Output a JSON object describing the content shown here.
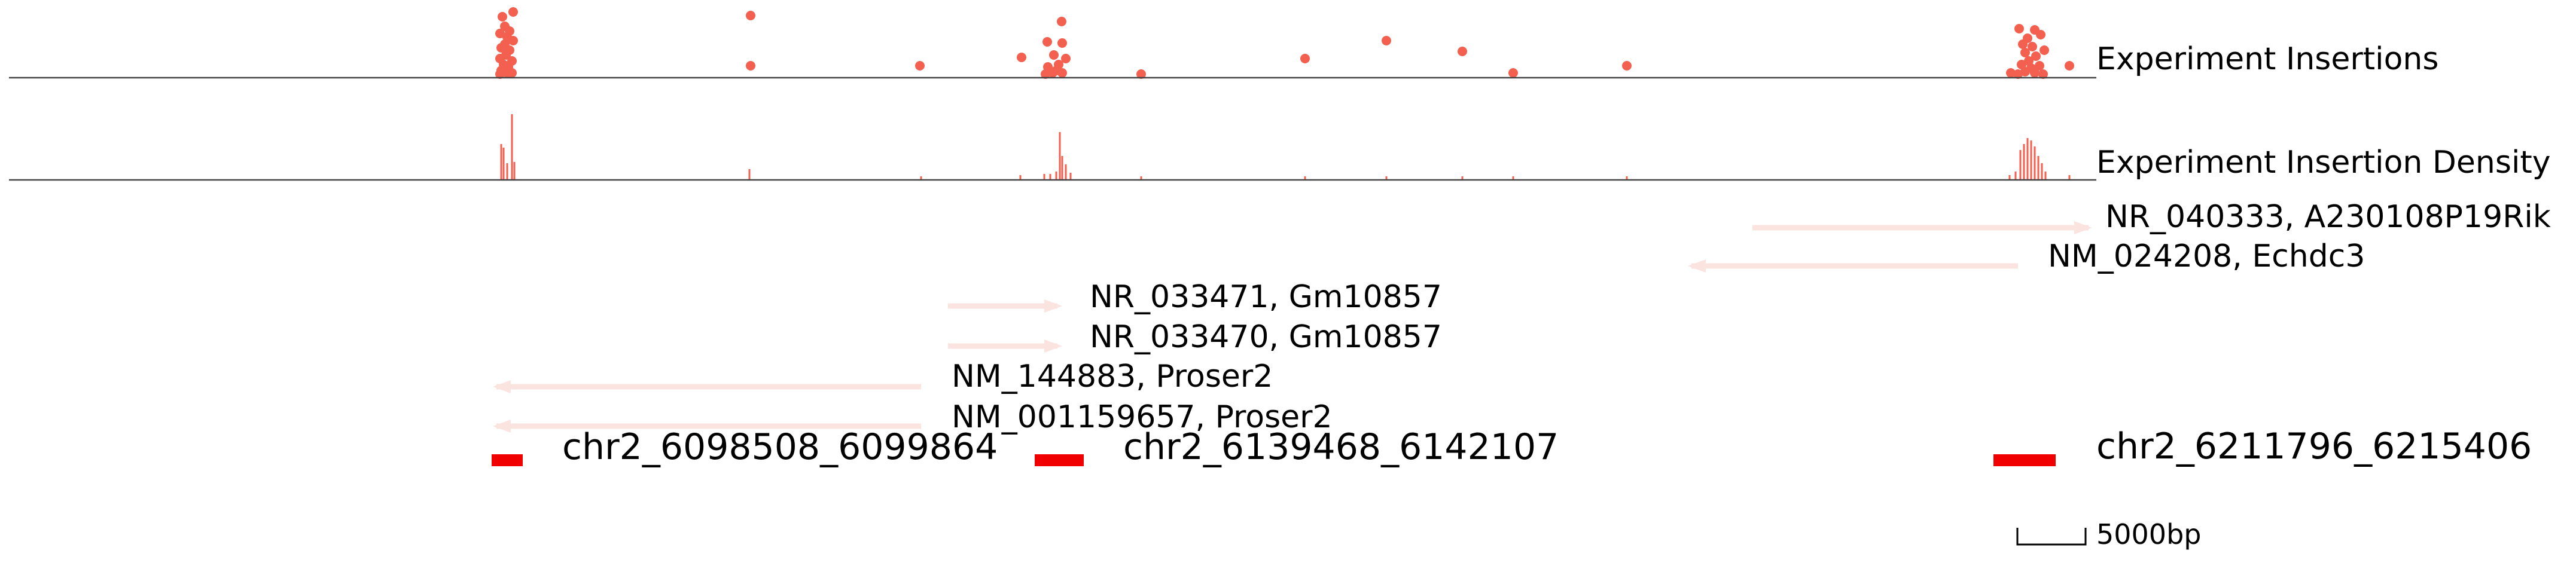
{
  "tracks": {
    "insertions_label": "Experiment Insertions",
    "density_label": "Experiment Insertion Density"
  },
  "colors": {
    "insertion": "#f4604f",
    "gene": "#fbe3e0",
    "peak": "#f00000",
    "axis": "#444444",
    "text": "#000000"
  },
  "genes": [
    {
      "label": "NR_040333, A230108P19Rik",
      "strand": "+"
    },
    {
      "label": "NM_024208, Echdc3",
      "strand": "-"
    },
    {
      "label": "NR_033471, Gm10857",
      "strand": "+"
    },
    {
      "label": "NR_033470, Gm10857",
      "strand": "+"
    },
    {
      "label": "NM_144883, Proser2",
      "strand": "-"
    },
    {
      "label": "NM_001159657, Proser2",
      "strand": "-"
    }
  ],
  "peaks": [
    {
      "label": "chr2_6098508_6099864"
    },
    {
      "label": "chr2_6139468_6142107"
    },
    {
      "label": "chr2_6211796_6215406"
    }
  ],
  "scale_bar": {
    "label": "5000bp"
  }
}
